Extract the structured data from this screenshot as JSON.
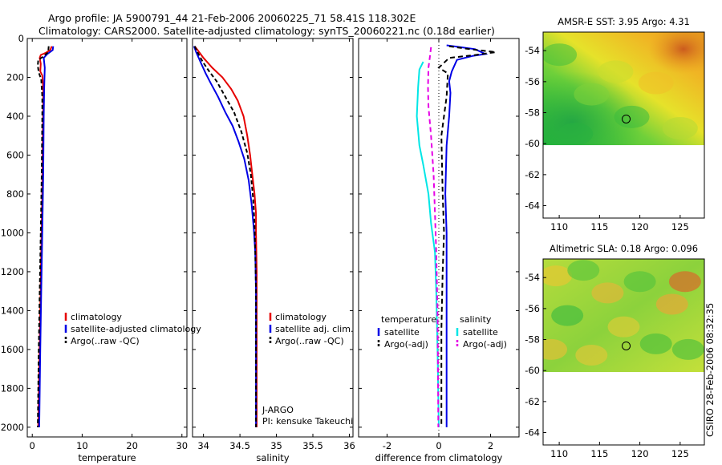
{
  "header": {
    "line1": "Argo profile: JA 5900791_44 21-Feb-2006 20060225_71 58.41S 118.302E",
    "line2": "Climatology: CARS2000. Satellite-adjusted climatology: synTS_20060221.nc (0.18d earlier)"
  },
  "side_stamp": "CSIRO 28-Feb-2006 08:32:35",
  "chart_data": [
    {
      "type": "line",
      "id": "temperature",
      "xlabel": "temperature",
      "xlim": [
        -1,
        31
      ],
      "ylim": [
        2050,
        0
      ],
      "xticks": [
        0,
        10,
        20,
        30
      ],
      "yticks": [
        0,
        200,
        400,
        600,
        800,
        1000,
        1200,
        1400,
        1600,
        1800,
        2000
      ],
      "legend": [
        "climatology",
        "satellite-adjusted climatology",
        "Argo(..raw -QC)"
      ],
      "series": [
        {
          "name": "climatology",
          "color": "#e60000",
          "dash": "",
          "points": [
            [
              3.9,
              40
            ],
            [
              3.6,
              60
            ],
            [
              2.6,
              75
            ],
            [
              1.7,
              85
            ],
            [
              1.5,
              100
            ],
            [
              1.7,
              130
            ],
            [
              1.6,
              170
            ],
            [
              2.0,
              190
            ],
            [
              2.2,
              250
            ],
            [
              2.2,
              350
            ],
            [
              2.1,
              500
            ],
            [
              2.0,
              800
            ],
            [
              1.8,
              1100
            ],
            [
              1.6,
              1400
            ],
            [
              1.4,
              1700
            ],
            [
              1.2,
              2000
            ]
          ]
        },
        {
          "name": "satellite-adjusted climatology",
          "color": "#0000e6",
          "dash": "",
          "points": [
            [
              4.2,
              40
            ],
            [
              4.1,
              60
            ],
            [
              3.0,
              80
            ],
            [
              2.3,
              100
            ],
            [
              2.5,
              150
            ],
            [
              2.4,
              250
            ],
            [
              2.3,
              400
            ],
            [
              2.2,
              700
            ],
            [
              2.0,
              1000
            ],
            [
              1.8,
              1300
            ],
            [
              1.6,
              1600
            ],
            [
              1.4,
              2000
            ]
          ]
        },
        {
          "name": "Argo(..raw -QC)",
          "color": "#000000",
          "dash": "5,3",
          "points": [
            [
              3.3,
              40
            ],
            [
              3.2,
              70
            ],
            [
              2.1,
              95
            ],
            [
              1.2,
              110
            ],
            [
              1.1,
              140
            ],
            [
              1.3,
              175
            ],
            [
              1.8,
              210
            ],
            [
              2.0,
              300
            ],
            [
              2.0,
              400
            ],
            [
              1.9,
              700
            ],
            [
              1.7,
              1000
            ],
            [
              1.5,
              1300
            ],
            [
              1.3,
              1600
            ],
            [
              1.1,
              2000
            ]
          ]
        }
      ]
    },
    {
      "type": "line",
      "id": "salinity",
      "xlabel": "salinity",
      "xlim": [
        33.85,
        36.05
      ],
      "ylim": [
        2050,
        0
      ],
      "xticks": [
        34,
        34.5,
        35,
        35.5,
        36
      ],
      "yticks": [
        0,
        200,
        400,
        600,
        800,
        1000,
        1200,
        1400,
        1600,
        1800,
        2000
      ],
      "legend": [
        "climatology",
        "satellite adj. clim.",
        "Argo(..raw -QC)"
      ],
      "series": [
        {
          "name": "climatology",
          "color": "#e60000",
          "dash": "",
          "points": [
            [
              33.88,
              40
            ],
            [
              33.92,
              60
            ],
            [
              34.0,
              100
            ],
            [
              34.12,
              150
            ],
            [
              34.26,
              200
            ],
            [
              34.38,
              260
            ],
            [
              34.47,
              320
            ],
            [
              34.55,
              400
            ],
            [
              34.6,
              500
            ],
            [
              34.64,
              600
            ],
            [
              34.67,
              700
            ],
            [
              34.7,
              800
            ],
            [
              34.72,
              900
            ],
            [
              34.72,
              1000
            ],
            [
              34.73,
              1200
            ],
            [
              34.73,
              1400
            ],
            [
              34.73,
              1600
            ],
            [
              34.73,
              1800
            ],
            [
              34.73,
              2000
            ]
          ]
        },
        {
          "name": "satellite adj. clim.",
          "color": "#0000e6",
          "dash": "",
          "points": [
            [
              33.87,
              40
            ],
            [
              33.9,
              70
            ],
            [
              33.97,
              130
            ],
            [
              34.03,
              180
            ],
            [
              34.1,
              230
            ],
            [
              34.2,
              300
            ],
            [
              34.3,
              380
            ],
            [
              34.4,
              450
            ],
            [
              34.48,
              530
            ],
            [
              34.56,
              620
            ],
            [
              34.62,
              730
            ],
            [
              34.66,
              850
            ],
            [
              34.69,
              980
            ],
            [
              34.71,
              1100
            ],
            [
              34.72,
              1300
            ],
            [
              34.72,
              1500
            ],
            [
              34.72,
              1800
            ],
            [
              34.72,
              2000
            ]
          ]
        },
        {
          "name": "Argo(..raw -QC)",
          "color": "#000000",
          "dash": "5,3",
          "points": [
            [
              33.88,
              40
            ],
            [
              33.91,
              65
            ],
            [
              33.99,
              120
            ],
            [
              34.08,
              170
            ],
            [
              34.18,
              220
            ],
            [
              34.3,
              300
            ],
            [
              34.42,
              380
            ],
            [
              34.52,
              480
            ],
            [
              34.6,
              590
            ],
            [
              34.65,
              700
            ],
            [
              34.68,
              820
            ],
            [
              34.7,
              950
            ],
            [
              34.71,
              1100
            ],
            [
              34.72,
              1300
            ],
            [
              34.72,
              1600
            ],
            [
              34.72,
              2000
            ]
          ]
        }
      ],
      "annotations": [
        "J-ARGO",
        "PI: kensuke Takeuchi"
      ]
    },
    {
      "type": "line",
      "id": "difference",
      "xlabel": "difference from climatology",
      "xlim": [
        -3.1,
        3.1
      ],
      "ylim": [
        2050,
        0
      ],
      "xticks": [
        -2,
        0,
        2
      ],
      "yticks": [
        0,
        200,
        400,
        600,
        800,
        1000,
        1200,
        1400,
        1600,
        1800,
        2000
      ],
      "legend_groups": [
        {
          "title": "temperature",
          "entries": [
            "satellite",
            "Argo(-adj)"
          ]
        },
        {
          "title": "salinity",
          "entries": [
            "satellite",
            "Argo(-adj)"
          ]
        }
      ],
      "series": [
        {
          "name": "temperature satellite",
          "color": "#0000e6",
          "dash": "",
          "points": [
            [
              0.3,
              35
            ],
            [
              1.4,
              55
            ],
            [
              1.8,
              80
            ],
            [
              1.3,
              90
            ],
            [
              0.7,
              110
            ],
            [
              0.5,
              170
            ],
            [
              0.4,
              220
            ],
            [
              0.45,
              280
            ],
            [
              0.4,
              400
            ],
            [
              0.3,
              550
            ],
            [
              0.25,
              800
            ],
            [
              0.3,
              1000
            ],
            [
              0.3,
              1200
            ],
            [
              0.3,
              1400
            ],
            [
              0.3,
              1600
            ],
            [
              0.3,
              1800
            ],
            [
              0.3,
              2000
            ]
          ]
        },
        {
          "name": "temperature Argo(-adj)",
          "color": "#000000",
          "dash": "6,4",
          "points": [
            [
              0.4,
              40
            ],
            [
              1.2,
              55
            ],
            [
              2.2,
              70
            ],
            [
              1.4,
              85
            ],
            [
              0.4,
              100
            ],
            [
              0.0,
              150
            ],
            [
              0.35,
              180
            ],
            [
              0.3,
              300
            ],
            [
              0.1,
              500
            ],
            [
              0.15,
              800
            ],
            [
              0.2,
              1000
            ],
            [
              0.15,
              1200
            ],
            [
              0.1,
              1500
            ],
            [
              0.1,
              1700
            ],
            [
              0.1,
              2000
            ]
          ]
        },
        {
          "name": "salinity satellite",
          "color": "#00e6e6",
          "dash": "",
          "points": [
            [
              -0.6,
              120
            ],
            [
              -0.75,
              160
            ],
            [
              -0.8,
              250
            ],
            [
              -0.85,
              400
            ],
            [
              -0.75,
              550
            ],
            [
              -0.6,
              650
            ],
            [
              -0.4,
              800
            ],
            [
              -0.3,
              950
            ],
            [
              -0.15,
              1100
            ],
            [
              -0.1,
              1300
            ],
            [
              -0.05,
              1600
            ],
            [
              0.0,
              2000
            ]
          ]
        },
        {
          "name": "salinity Argo(-adj)",
          "color": "#e600e6",
          "dash": "6,4",
          "points": [
            [
              -0.3,
              45
            ],
            [
              -0.35,
              100
            ],
            [
              -0.4,
              150
            ],
            [
              -0.42,
              250
            ],
            [
              -0.4,
              350
            ],
            [
              -0.3,
              500
            ],
            [
              -0.2,
              700
            ],
            [
              -0.15,
              900
            ],
            [
              -0.1,
              1100
            ],
            [
              -0.05,
              1400
            ],
            [
              -0.03,
              1700
            ],
            [
              -0.02,
              2000
            ]
          ]
        }
      ]
    },
    {
      "type": "heatmap",
      "id": "sst-map",
      "title": "AMSR-E SST: 3.95 Argo: 4.31",
      "xlim": [
        108,
        128
      ],
      "ylim": [
        -64.8,
        -52.8
      ],
      "data_extent_ymin": -60.1,
      "xticks": [
        110,
        115,
        120,
        125
      ],
      "yticks": [
        -54,
        -56,
        -58,
        -60,
        -62,
        -64
      ],
      "marker": [
        118.302,
        -58.41
      ]
    },
    {
      "type": "heatmap",
      "id": "sla-map",
      "title": "Altimetric SLA: 0.18 Argo: 0.096",
      "xlim": [
        108,
        128
      ],
      "ylim": [
        -64.8,
        -52.8
      ],
      "data_extent_ymin": -60.1,
      "xticks": [
        110,
        115,
        120,
        125
      ],
      "yticks": [
        -54,
        -56,
        -58,
        -60,
        -62,
        -64
      ],
      "marker": [
        118.302,
        -58.41
      ]
    }
  ]
}
